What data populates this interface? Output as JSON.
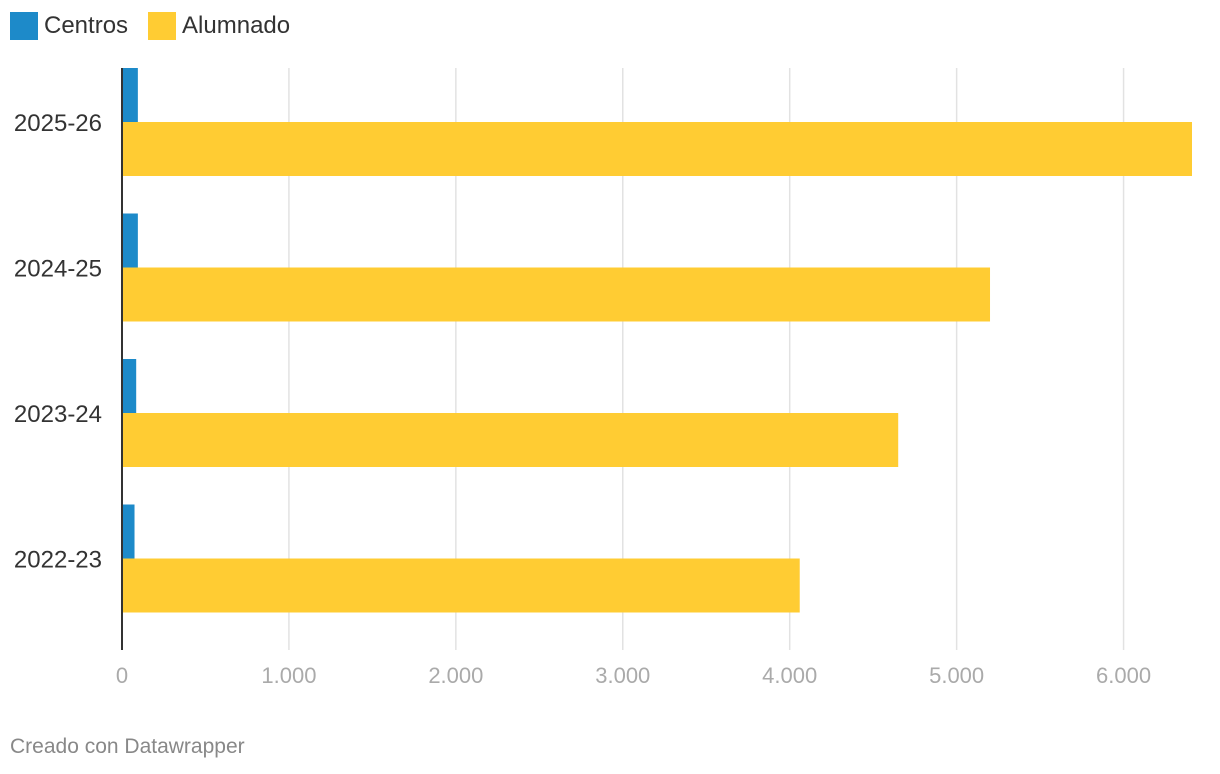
{
  "chart_data": {
    "type": "bar",
    "orientation": "horizontal",
    "categories": [
      "2025-26",
      "2024-25",
      "2023-24",
      "2022-23"
    ],
    "series": [
      {
        "name": "Centros",
        "color": "#1d8ac9",
        "values": [
          95,
          95,
          85,
          75
        ]
      },
      {
        "name": "Alumnado",
        "color": "#ffcc33",
        "values": [
          6410,
          5200,
          4650,
          4060
        ]
      }
    ],
    "x_ticks": [
      0,
      1000,
      2000,
      3000,
      4000,
      5000,
      6000
    ],
    "x_tick_labels": [
      "0",
      "1.000",
      "2.000",
      "3.000",
      "4.000",
      "5.000",
      "6.000"
    ],
    "xlim": [
      0,
      6410
    ],
    "grid": "vertical",
    "legend_position": "top-left"
  },
  "footer": {
    "credit": "Creado con Datawrapper"
  }
}
